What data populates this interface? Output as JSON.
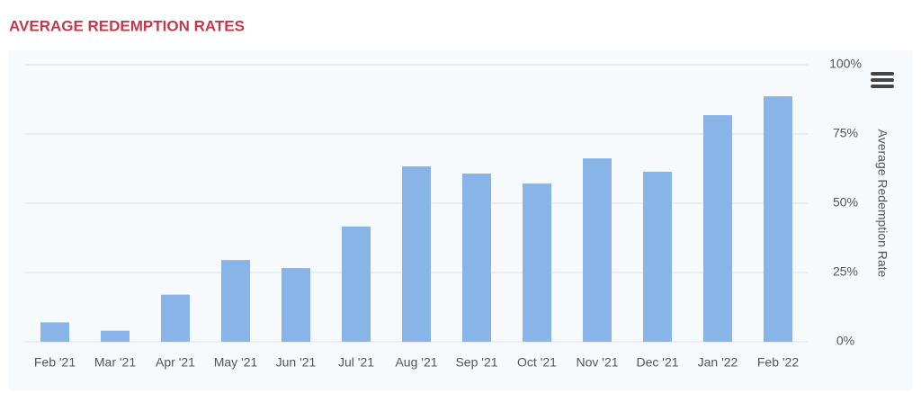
{
  "chart_data": {
    "type": "bar",
    "title": "AVERAGE REDEMPTION RATES",
    "y_axis_label": "Average Redemption Rate",
    "categories": [
      "Feb '21",
      "Mar '21",
      "Apr '21",
      "May '21",
      "Jun '21",
      "Jul '21",
      "Aug '21",
      "Sep '21",
      "Oct '21",
      "Nov '21",
      "Dec '21",
      "Jan '22",
      "Feb '22"
    ],
    "values": [
      7,
      4,
      17,
      29.5,
      26.6,
      41.6,
      63.3,
      60.7,
      57.1,
      66.2,
      61.4,
      81.8,
      88.6
    ],
    "color": "#88b4e7",
    "ylim": [
      0,
      100
    ],
    "yticks": [
      {
        "value": 0,
        "label": "0%"
      },
      {
        "value": 25,
        "label": "25%"
      },
      {
        "value": 50,
        "label": "50%"
      },
      {
        "value": 75,
        "label": "75%"
      },
      {
        "value": 100,
        "label": "100%"
      }
    ],
    "grid": true
  }
}
